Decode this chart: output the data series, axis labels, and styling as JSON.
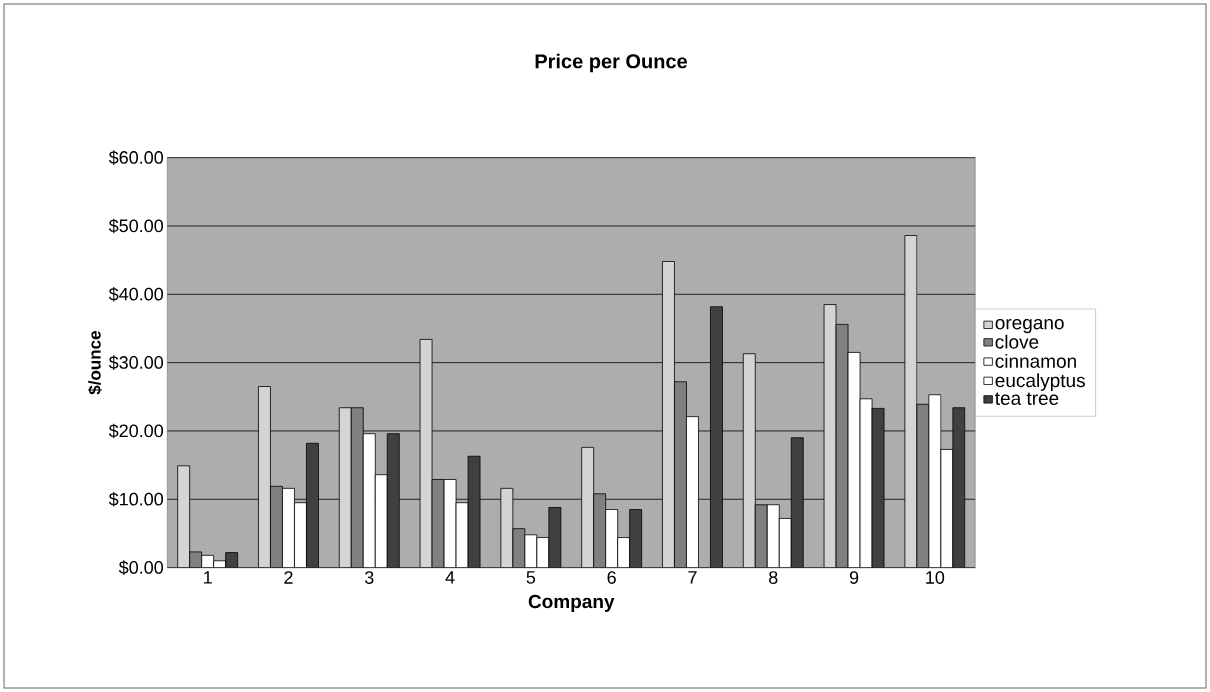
{
  "chart_data": {
    "type": "bar",
    "title": "Price per Ounce",
    "xlabel": "Company",
    "ylabel": "$/ounce",
    "categories": [
      "1",
      "2",
      "3",
      "4",
      "5",
      "6",
      "7",
      "8",
      "9",
      "10"
    ],
    "series": [
      {
        "name": "oregano",
        "color": "#d4d4d4",
        "values": [
          14.9,
          26.5,
          23.4,
          33.4,
          11.6,
          17.6,
          44.8,
          31.3,
          38.5,
          48.6
        ]
      },
      {
        "name": "clove",
        "color": "#808080",
        "values": [
          2.3,
          11.9,
          23.4,
          12.9,
          5.7,
          10.8,
          27.2,
          9.2,
          35.6,
          23.9
        ]
      },
      {
        "name": "cinnamon",
        "color": "#ffffff",
        "values": [
          1.8,
          11.6,
          19.6,
          12.9,
          4.8,
          8.5,
          22.1,
          9.2,
          31.5,
          25.3
        ]
      },
      {
        "name": "eucalyptus",
        "color": "#ffffff",
        "values": [
          1.0,
          9.5,
          13.6,
          9.5,
          4.4,
          4.4,
          null,
          7.2,
          24.7,
          17.3
        ]
      },
      {
        "name": "tea tree",
        "color": "#404040",
        "values": [
          2.2,
          18.2,
          19.6,
          16.3,
          8.8,
          8.5,
          38.2,
          19.0,
          23.3,
          23.4
        ]
      }
    ],
    "ylim": [
      0,
      60
    ],
    "yticks": [
      {
        "value": 0,
        "label": "$0.00"
      },
      {
        "value": 10,
        "label": "$10.00"
      },
      {
        "value": 20,
        "label": "$20.00"
      },
      {
        "value": 30,
        "label": "$30.00"
      },
      {
        "value": 40,
        "label": "$40.00"
      },
      {
        "value": 50,
        "label": "$50.00"
      },
      {
        "value": 60,
        "label": "$60.00"
      }
    ],
    "grid": "y",
    "legend": "right"
  }
}
